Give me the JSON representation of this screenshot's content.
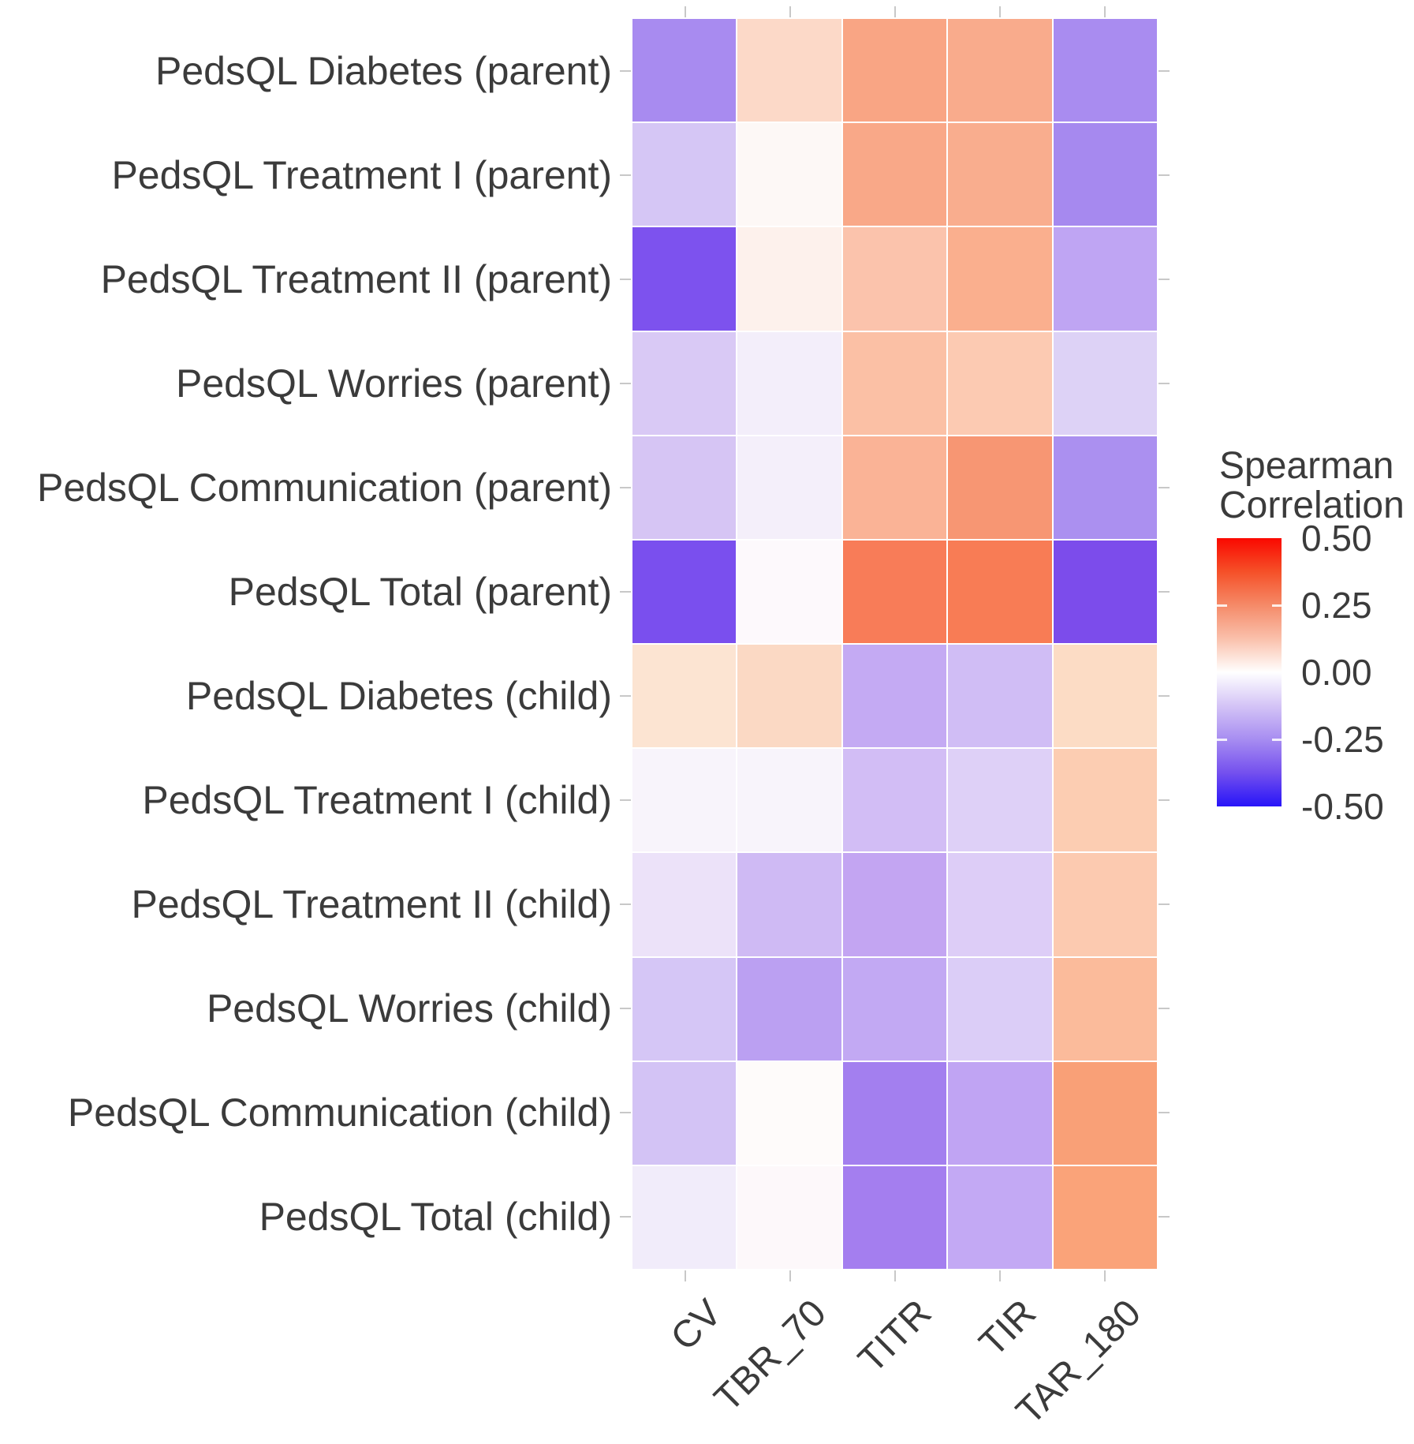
{
  "chart_data": {
    "type": "heatmap",
    "title": "",
    "xlabel": "",
    "ylabel": "",
    "grid": false,
    "legend_position": "right",
    "columns": [
      "CV",
      "TBR_70",
      "TITR",
      "TIR",
      "TAR_180"
    ],
    "rows": [
      "PedsQL Diabetes (parent)",
      "PedsQL Treatment I (parent)",
      "PedsQL Treatment II (parent)",
      "PedsQL Worries (parent)",
      "PedsQL Communication (parent)",
      "PedsQL Total (parent)",
      "PedsQL Diabetes (child)",
      "PedsQL Treatment I (child)",
      "PedsQL Treatment II (child)",
      "PedsQL Worries (child)",
      "PedsQL Communication (child)",
      "PedsQL Total (child)"
    ],
    "values": [
      [
        -0.27,
        0.11,
        0.26,
        0.24,
        -0.27
      ],
      [
        -0.13,
        0.02,
        0.25,
        0.23,
        -0.28
      ],
      [
        -0.4,
        0.04,
        0.17,
        0.22,
        -0.21
      ],
      [
        -0.12,
        -0.04,
        0.18,
        0.15,
        -0.11
      ],
      [
        -0.13,
        -0.04,
        0.21,
        0.29,
        -0.24
      ],
      [
        -0.41,
        0.01,
        0.35,
        0.36,
        -0.42
      ],
      [
        0.08,
        0.1,
        -0.19,
        -0.15,
        0.1
      ],
      [
        -0.02,
        -0.02,
        -0.15,
        -0.1,
        0.14
      ],
      [
        -0.07,
        -0.17,
        -0.2,
        -0.11,
        0.15
      ],
      [
        -0.13,
        -0.23,
        -0.2,
        -0.11,
        0.19
      ],
      [
        -0.14,
        0.01,
        -0.3,
        -0.21,
        0.27
      ],
      [
        -0.05,
        0.01,
        -0.3,
        -0.2,
        0.26
      ]
    ],
    "cell_colors": [
      [
        "#a88bf0",
        "#fcd9c8",
        "#f9a584",
        "#f9ab8c",
        "#a98cf0"
      ],
      [
        "#d5c6f5",
        "#fdf8f6",
        "#f9a888",
        "#f9ad8e",
        "#a689ef"
      ],
      [
        "#7d52ee",
        "#fdf1ec",
        "#fbc3ac",
        "#faaf8e",
        "#bfa5f3"
      ],
      [
        "#d9c9f5",
        "#f3eefa",
        "#fbc0a5",
        "#fccab2",
        "#ddd2f6"
      ],
      [
        "#d6c5f4",
        "#f4effa",
        "#fab396",
        "#f79673",
        "#ab90f0"
      ],
      [
        "#7a4fee",
        "#fdf9fc",
        "#f87c58",
        "#f87c55",
        "#7c4ceb"
      ],
      [
        "#fce4d2",
        "#fbd9c4",
        "#c4aaf3",
        "#d0bdf5",
        "#fcdcc5"
      ],
      [
        "#f8f4fb",
        "#f8f4fb",
        "#d2bdf5",
        "#ded0f7",
        "#fccdb2"
      ],
      [
        "#ece2f9",
        "#cfbaf4",
        "#c3a5f2",
        "#ddcdf7",
        "#fccab0"
      ],
      [
        "#d5c6f6",
        "#bba0f2",
        "#c2a9f3",
        "#dbcdf7",
        "#fbbb9b"
      ],
      [
        "#d3c3f5",
        "#fefbfa",
        "#a37fef",
        "#c0a4f3",
        "#f9a077"
      ],
      [
        "#f1ecfa",
        "#fdf8fa",
        "#a47eef",
        "#c3a9f4",
        "#faa379"
      ]
    ],
    "legend": {
      "title_line1": "Spearman",
      "title_line2": "Correlation",
      "tick_labels": [
        "0.50",
        "0.25",
        "0.00",
        "-0.25",
        "-0.50"
      ],
      "scale_min": -0.5,
      "scale_max": 0.5,
      "gradient_stops": [
        "#fa0800",
        "#f55028",
        "#f58a68",
        "#fac0ab",
        "#ffffff",
        "#d4c4f6",
        "#a78df1",
        "#7450ee",
        "#2714f8"
      ],
      "high_color": "#fa0800",
      "mid_color": "#ffffff",
      "low_color": "#2714f8"
    },
    "tick_color": "#c8c8c8",
    "text_color": "#3b3b3b"
  }
}
